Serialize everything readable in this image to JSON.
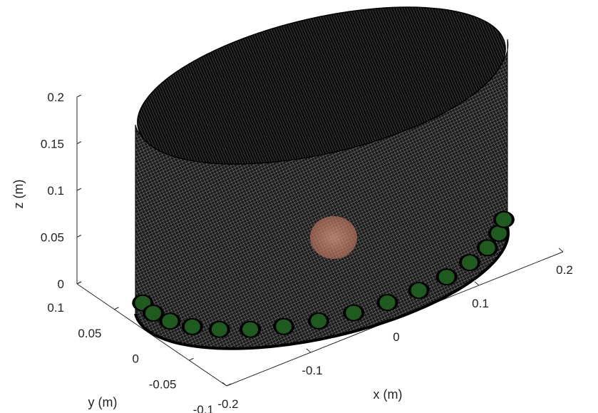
{
  "chart_data": {
    "type": "3d-mesh",
    "title": "",
    "axes": {
      "x": {
        "label": "x (m)",
        "ticks": [
          "-0.2",
          "-0.1",
          "0",
          "0.1",
          "0.2"
        ],
        "range": [
          -0.2,
          0.2
        ]
      },
      "y": {
        "label": "y (m)",
        "ticks": [
          "-0.1",
          "-0.05",
          "0",
          "0.05",
          "0.1"
        ],
        "range": [
          -0.1,
          0.1
        ]
      },
      "z": {
        "label": "z (m)",
        "ticks": [
          "0",
          "0.05",
          "0.1",
          "0.15",
          "0.2"
        ],
        "range": [
          0,
          0.2
        ]
      }
    },
    "object": {
      "shape": "elliptic cylinder",
      "mesh_color": "#000000",
      "edge_color": "#ffffff",
      "electrode_color": "#1f5a1f",
      "inclusion_color": "#e8a080"
    },
    "grid": false
  }
}
